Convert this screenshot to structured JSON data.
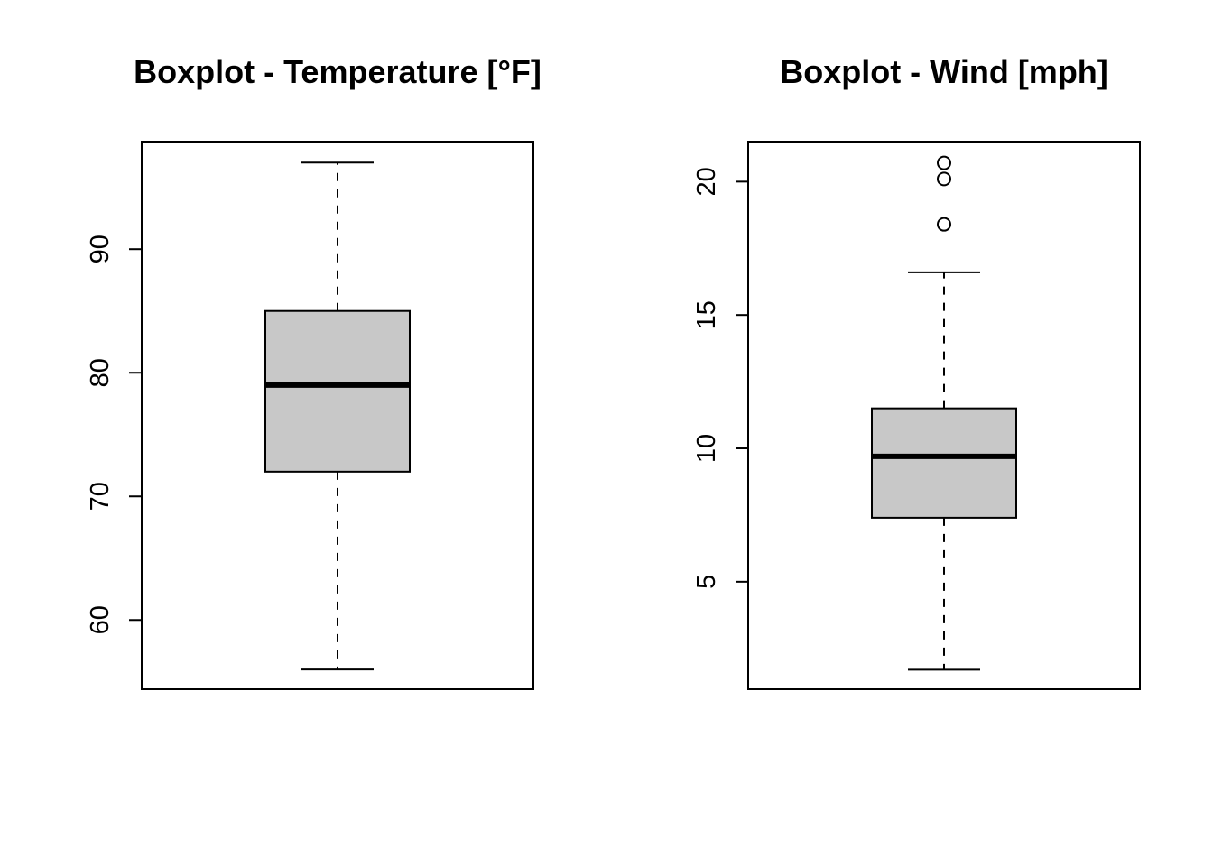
{
  "chart_data": [
    {
      "type": "boxplot",
      "title": "Boxplot - Temperature [°F]",
      "ylim": [
        54.4,
        98.7
      ],
      "ticks": [
        60,
        70,
        80,
        90
      ],
      "tick_labels": [
        "60",
        "70",
        "80",
        "90"
      ],
      "box": {
        "whisker_low": 56,
        "q1": 72,
        "median": 79,
        "q3": 85,
        "whisker_high": 97,
        "outliers": []
      },
      "box_fill": "#c8c8c8",
      "grid": false,
      "legend": "none"
    },
    {
      "type": "boxplot",
      "title": "Boxplot - Wind [mph]",
      "ylim": [
        0.97,
        21.5
      ],
      "ticks": [
        5,
        10,
        15,
        20
      ],
      "tick_labels": [
        "5",
        "10",
        "15",
        "20"
      ],
      "box": {
        "whisker_low": 1.7,
        "q1": 7.4,
        "median": 9.7,
        "q3": 11.5,
        "whisker_high": 16.6,
        "outliers": [
          18.4,
          20.1,
          20.7
        ]
      },
      "box_fill": "#c8c8c8",
      "grid": false,
      "legend": "none"
    }
  ]
}
